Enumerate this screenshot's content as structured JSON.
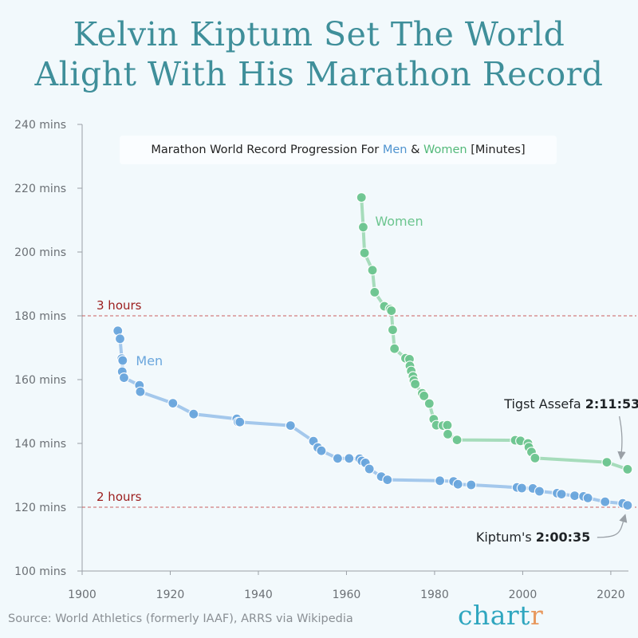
{
  "title_lines": [
    "Kelvin Kiptum Set The World",
    "Alight With His Marathon Record"
  ],
  "subtitle": {
    "prefix": "Marathon World Record Progression For ",
    "men": "Men",
    "amp": " & ",
    "women": "Women",
    "suffix": " [Minutes]"
  },
  "source": "Source: World Athletics (formerly IAAF), ARRS via Wikipedia",
  "logo": {
    "main": "chart",
    "accent": "r"
  },
  "colors": {
    "men": "#6aa6dd",
    "men_line": "#a4c8ec",
    "women": "#6cc58f",
    "women_line": "#a6dcbb",
    "reference": "#c23b3b",
    "reference_label": "#9b1c1c",
    "title": "#3f8f9a"
  },
  "chart_data": {
    "type": "line",
    "xlim": [
      1900,
      2024
    ],
    "ylim": [
      100,
      240
    ],
    "x_ticks": [
      1900,
      1920,
      1940,
      1960,
      1980,
      2000,
      2020
    ],
    "y_ticks": [
      {
        "value": 100,
        "label": "100 mins"
      },
      {
        "value": 120,
        "label": "120 mins"
      },
      {
        "value": 140,
        "label": "140 mins"
      },
      {
        "value": 160,
        "label": "160 mins"
      },
      {
        "value": 180,
        "label": "180 mins"
      },
      {
        "value": 200,
        "label": "200 mins"
      },
      {
        "value": 220,
        "label": "220 mins"
      },
      {
        "value": 240,
        "label": "240 mins"
      }
    ],
    "reference_lines": [
      {
        "y": 180,
        "label": "3 hours"
      },
      {
        "y": 120,
        "label": "2 hours"
      }
    ],
    "series": [
      {
        "name": "Men",
        "color_key": "men",
        "points": [
          [
            1908.1,
            175.3
          ],
          [
            1908.6,
            172.8
          ],
          [
            1909.0,
            166.6
          ],
          [
            1909.2,
            166.0
          ],
          [
            1909.1,
            162.5
          ],
          [
            1909.5,
            160.6
          ],
          [
            1913.0,
            158.2
          ],
          [
            1913.2,
            156.2
          ],
          [
            1920.6,
            152.6
          ],
          [
            1925.3,
            149.2
          ],
          [
            1935.1,
            147.7
          ],
          [
            1935.4,
            146.7
          ],
          [
            1935.8,
            146.7
          ],
          [
            1947.3,
            145.6
          ],
          [
            1952.5,
            140.7
          ],
          [
            1953.5,
            138.7
          ],
          [
            1954.3,
            137.7
          ],
          [
            1958.0,
            135.3
          ],
          [
            1960.6,
            135.3
          ],
          [
            1963.0,
            135.2
          ],
          [
            1963.5,
            134.5
          ],
          [
            1964.3,
            133.9
          ],
          [
            1965.2,
            132.0
          ],
          [
            1967.9,
            129.6
          ],
          [
            1969.3,
            128.6
          ],
          [
            1981.2,
            128.3
          ],
          [
            1984.3,
            128.1
          ],
          [
            1985.3,
            127.2
          ],
          [
            1988.3,
            127.0
          ],
          [
            1998.7,
            126.2
          ],
          [
            1999.8,
            126.0
          ],
          [
            2002.3,
            125.9
          ],
          [
            2003.8,
            125.0
          ],
          [
            2007.8,
            124.4
          ],
          [
            2008.8,
            124.1
          ],
          [
            2011.8,
            123.6
          ],
          [
            2013.8,
            123.4
          ],
          [
            2014.8,
            122.9
          ],
          [
            2018.7,
            121.7
          ],
          [
            2022.7,
            121.2
          ],
          [
            2023.8,
            120.6
          ]
        ]
      },
      {
        "name": "Women",
        "color_key": "women",
        "points": [
          [
            1963.4,
            217.1
          ],
          [
            1963.8,
            207.8
          ],
          [
            1964.1,
            199.7
          ],
          [
            1965.9,
            194.3
          ],
          [
            1966.4,
            187.4
          ],
          [
            1968.6,
            183.0
          ],
          [
            1969.9,
            182.1
          ],
          [
            1970.2,
            181.6
          ],
          [
            1970.5,
            175.6
          ],
          [
            1970.9,
            169.7
          ],
          [
            1973.4,
            166.7
          ],
          [
            1974.3,
            166.4
          ],
          [
            1974.4,
            164.3
          ],
          [
            1974.7,
            162.7
          ],
          [
            1975.1,
            161.0
          ],
          [
            1975.3,
            159.7
          ],
          [
            1975.6,
            158.6
          ],
          [
            1977.2,
            155.7
          ],
          [
            1977.6,
            154.9
          ],
          [
            1978.8,
            152.5
          ],
          [
            1979.8,
            147.6
          ],
          [
            1980.4,
            145.7
          ],
          [
            1981.9,
            145.6
          ],
          [
            1982.9,
            145.7
          ],
          [
            1983.0,
            142.9
          ],
          [
            1985.1,
            141.1
          ],
          [
            1998.3,
            141.0
          ],
          [
            1999.5,
            140.8
          ],
          [
            2001.2,
            140.0
          ],
          [
            2001.4,
            138.8
          ],
          [
            2002.0,
            137.3
          ],
          [
            2002.8,
            135.4
          ],
          [
            2019.1,
            134.1
          ],
          [
            2023.8,
            131.9
          ]
        ]
      }
    ],
    "annotations": [
      {
        "text": "Men",
        "x": 1912.2,
        "y": 164.5,
        "color_key": "men"
      },
      {
        "text": "Women",
        "x": 1966.5,
        "y": 208.2,
        "color_key": "women"
      },
      {
        "prefix": "Tigst Assefa ",
        "bold": "2:11:53",
        "x": 1995.8,
        "y": 151.0,
        "arrow_to": [
          2022.3,
          133.5
        ],
        "color_key": "text"
      },
      {
        "prefix": "Kiptum's ",
        "bold": "2:00:35",
        "x": 1989.4,
        "y": 109.3,
        "arrow_to": [
          2023.2,
          118.8
        ],
        "color_key": "text"
      }
    ]
  }
}
